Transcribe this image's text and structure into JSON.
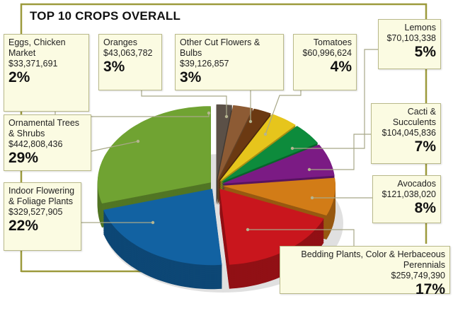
{
  "chart_data": {
    "type": "pie",
    "style": "3d-exploded",
    "title": "TOP 10 CROPS OVERALL",
    "slices": [
      {
        "label": "Eggs, Chicken Market",
        "value": 33371691,
        "value_text": "$33,371,691",
        "percent": "2%",
        "color": "#5b5047"
      },
      {
        "label": "Oranges",
        "value": 43063782,
        "value_text": "$43,063,782",
        "percent": "3%",
        "color": "#8d5b34"
      },
      {
        "label": "Other Cut Flowers & Bulbs",
        "value": 39126857,
        "value_text": "$39,126,857",
        "percent": "3%",
        "color": "#6b3912"
      },
      {
        "label": "Tomatoes",
        "value": 60996624,
        "value_text": "$60,996,624",
        "percent": "4%",
        "color": "#e6c51c"
      },
      {
        "label": "Lemons",
        "value": 70103338,
        "value_text": "$70,103,338",
        "percent": "5%",
        "color": "#0d8b3c"
      },
      {
        "label": "Cacti & Succulents",
        "value": 104045836,
        "value_text": "$104,045,836",
        "percent": "7%",
        "color": "#7b1b84"
      },
      {
        "label": "Avocados",
        "value": 121038020,
        "value_text": "$121,038,020",
        "percent": "8%",
        "color": "#d27c17"
      },
      {
        "label": "Bedding Plants, Color & Herbaceous Perennials",
        "value": 259749390,
        "value_text": "$259,749,390",
        "percent": "17%",
        "color": "#c9161d"
      },
      {
        "label": "Indoor Flowering & Foliage Plants",
        "value": 329527905,
        "value_text": "$329,527,905",
        "percent": "22%",
        "color": "#1262a2"
      },
      {
        "label": "Ornamental Trees & Shrubs",
        "value": 442808436,
        "value_text": "$442,808,436",
        "percent": "29%",
        "color": "#70a332"
      }
    ],
    "frame_color": "#9c9a3c"
  }
}
